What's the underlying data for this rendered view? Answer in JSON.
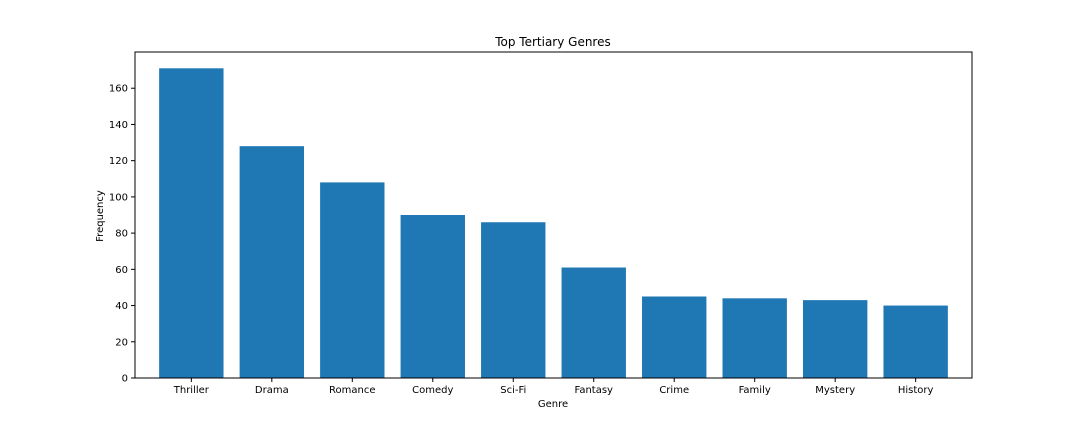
{
  "chart_data": {
    "type": "bar",
    "title": "Top Tertiary Genres",
    "xlabel": "Genre",
    "ylabel": "Frequency",
    "categories": [
      "Thriller",
      "Drama",
      "Romance",
      "Comedy",
      "Sci-Fi",
      "Fantasy",
      "Crime",
      "Family",
      "Mystery",
      "History"
    ],
    "values": [
      171,
      128,
      108,
      90,
      86,
      61,
      45,
      44,
      43,
      40
    ],
    "ylim": [
      0,
      180
    ],
    "yticks": [
      0,
      20,
      40,
      60,
      80,
      100,
      120,
      140,
      160
    ],
    "grid": false,
    "legend": "none",
    "bar_color": "#1f77b4"
  }
}
